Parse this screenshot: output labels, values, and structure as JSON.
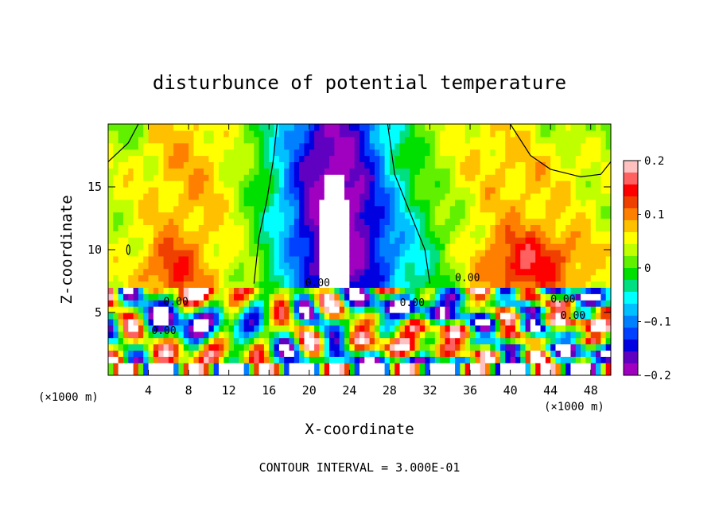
{
  "chart_data": {
    "type": "heatmap",
    "title": "disturbunce of potential temperature",
    "xlabel": "X-coordinate",
    "ylabel": "Z-coordinate",
    "x_unit": "(×1000 m)",
    "xlim": [
      0,
      50
    ],
    "ylim": [
      0,
      20
    ],
    "x_ticks": [
      4,
      8,
      12,
      16,
      20,
      24,
      28,
      32,
      36,
      40,
      44,
      48
    ],
    "y_ticks": [
      5,
      10,
      15
    ],
    "colorbar": {
      "range": [
        -0.2,
        0.2
      ],
      "ticks": [
        0.2,
        0.1,
        0,
        -0.1,
        -0.2
      ],
      "tick_labels": [
        "0.2",
        "0.1",
        "0",
        "−0.1",
        "−0.2"
      ],
      "colors": [
        "#ffc0c0",
        "#ff6060",
        "#ff0000",
        "#f04000",
        "#ff8000",
        "#ffc000",
        "#ffff00",
        "#c0ff00",
        "#60f000",
        "#00e000",
        "#00e080",
        "#00ffff",
        "#00c0ff",
        "#0080ff",
        "#0040ff",
        "#0000e0",
        "#6000c0",
        "#a000c0"
      ]
    },
    "contour_labels": [
      "0.00",
      "0.00",
      "0.00",
      "0.00",
      "0.00",
      "0.00",
      "0.00"
    ],
    "footer": "CONTOUR INTERVAL = 3.000E-01"
  }
}
